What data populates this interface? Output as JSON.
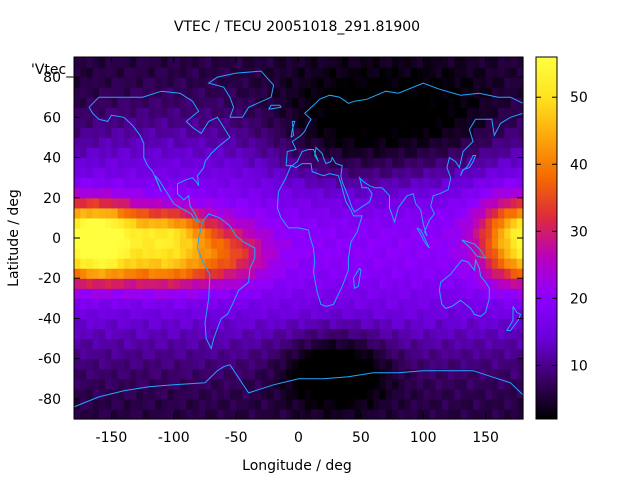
{
  "chart_data": {
    "type": "heatmap",
    "title": "VTEC / TECU 20051018_291.81900",
    "xlabel": "Longitude / deg",
    "ylabel": "Latitude / deg",
    "series_label": "'Vtec_",
    "xlim": [
      -180,
      180
    ],
    "ylim": [
      -90,
      90
    ],
    "xticks": [
      {
        "value": -150,
        "label": "-150"
      },
      {
        "value": -100,
        "label": "-100"
      },
      {
        "value": -50,
        "label": "-50"
      },
      {
        "value": 0,
        "label": "0"
      },
      {
        "value": 50,
        "label": "50"
      },
      {
        "value": 100,
        "label": "100"
      },
      {
        "value": 150,
        "label": "150"
      }
    ],
    "yticks": [
      {
        "value": 80,
        "label": "80"
      },
      {
        "value": 60,
        "label": "60"
      },
      {
        "value": 40,
        "label": "40"
      },
      {
        "value": 20,
        "label": "20"
      },
      {
        "value": 0,
        "label": "0"
      },
      {
        "value": -20,
        "label": "-20"
      },
      {
        "value": -40,
        "label": "-40"
      },
      {
        "value": -60,
        "label": "-60"
      },
      {
        "value": -80,
        "label": "-80"
      }
    ],
    "colorbar": {
      "range": [
        2,
        56
      ],
      "ticks": [
        {
          "value": 10,
          "label": "10"
        },
        {
          "value": 20,
          "label": "20"
        },
        {
          "value": 30,
          "label": "30"
        },
        {
          "value": 40,
          "label": "40"
        },
        {
          "value": 50,
          "label": "50"
        }
      ],
      "colors": [
        "#000000",
        "#3b0066",
        "#6a00d8",
        "#8d00ff",
        "#b800c0",
        "#dd2a3d",
        "#f56a00",
        "#fca70c",
        "#ffe31e",
        "#ffff40"
      ]
    },
    "grid": false,
    "grid_step_deg": 5,
    "colors": {
      "coastline": "#1ea8ff",
      "axes": "#000000"
    },
    "field_blobs": [
      {
        "lon": -160,
        "lat": 5,
        "sig_lon": 22,
        "sig_lat": 9,
        "amp": 33
      },
      {
        "lon": -160,
        "lat": -12,
        "sig_lon": 22,
        "sig_lat": 8,
        "amp": 26
      },
      {
        "lon": -105,
        "lat": 3,
        "sig_lon": 25,
        "sig_lat": 8,
        "amp": 26
      },
      {
        "lon": -105,
        "lat": -13,
        "sig_lon": 25,
        "sig_lat": 8,
        "amp": 22
      },
      {
        "lon": -55,
        "lat": -8,
        "sig_lon": 22,
        "sig_lat": 10,
        "amp": 13
      },
      {
        "lon": 165,
        "lat": 0,
        "sig_lon": 18,
        "sig_lat": 14,
        "amp": 16
      },
      {
        "lon": 30,
        "lat": -65,
        "sig_lon": 28,
        "sig_lat": 12,
        "amp": -12
      },
      {
        "lon": 40,
        "lat": 50,
        "sig_lon": 45,
        "sig_lat": 22,
        "amp": -9
      },
      {
        "lon": 120,
        "lat": 55,
        "sig_lon": 40,
        "sig_lat": 20,
        "amp": -6
      }
    ]
  }
}
